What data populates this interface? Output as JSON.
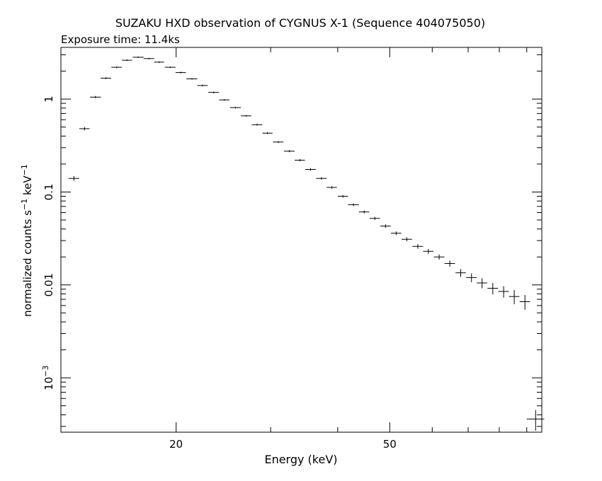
{
  "chart_data": {
    "type": "scatter",
    "title": "SUZAKU HXD observation of CYGNUS X-1 (Sequence 404075050)",
    "subtitle": "Exposure time: 11.4ks",
    "xlabel": "Energy (keV)",
    "ylabel": {
      "base": "normalized counts s",
      "sup1": "−1",
      "mid": " keV",
      "sup2": "−1"
    },
    "xscale": "log",
    "yscale": "log",
    "xlim": [
      12.2,
      96
    ],
    "ylim": [
      0.00026,
      3.6
    ],
    "grid": false,
    "legend": "none",
    "x_ticks": [
      {
        "value": 20,
        "label": "20"
      },
      {
        "value": 50,
        "label": "50"
      }
    ],
    "y_ticks": [
      {
        "value": 0.001,
        "base": "10",
        "sup": "−3"
      },
      {
        "value": 0.01,
        "base": "0.01",
        "sup": ""
      },
      {
        "value": 0.1,
        "base": "0.1",
        "sup": ""
      },
      {
        "value": 1,
        "base": "1",
        "sup": ""
      }
    ],
    "series": [
      {
        "x": [
          12.9,
          13.5,
          14.15,
          14.8,
          15.5,
          16.2,
          17.0,
          17.8,
          18.6,
          19.5,
          20.4,
          21.4,
          22.4,
          23.5,
          24.6,
          25.8,
          27.0,
          28.3,
          29.6,
          31.0,
          32.5,
          34.0,
          35.6,
          37.3,
          39.0,
          40.9,
          42.8,
          44.8,
          46.9,
          49.1,
          51.4,
          53.8,
          56.4,
          59.0,
          61.8,
          64.7,
          67.8,
          71.0,
          74.3,
          77.8,
          81.5,
          85.3,
          89.3
        ],
        "y": [
          0.14,
          0.48,
          1.05,
          1.68,
          2.2,
          2.62,
          2.82,
          2.73,
          2.5,
          2.2,
          1.93,
          1.65,
          1.4,
          1.18,
          0.98,
          0.81,
          0.66,
          0.53,
          0.43,
          0.345,
          0.275,
          0.22,
          0.175,
          0.14,
          0.112,
          0.09,
          0.073,
          0.061,
          0.052,
          0.043,
          0.036,
          0.031,
          0.026,
          0.023,
          0.02,
          0.017,
          0.0135,
          0.012,
          0.0105,
          0.0092,
          0.0085,
          0.0075,
          0.0066
        ],
        "xerr": [
          0.3,
          0.3,
          0.33,
          0.33,
          0.35,
          0.35,
          0.4,
          0.4,
          0.4,
          0.45,
          0.45,
          0.5,
          0.5,
          0.55,
          0.55,
          0.6,
          0.6,
          0.65,
          0.65,
          0.7,
          0.75,
          0.75,
          0.8,
          0.85,
          0.85,
          0.9,
          1.0,
          1.0,
          1.05,
          1.1,
          1.15,
          1.2,
          1.3,
          1.3,
          1.4,
          1.45,
          1.5,
          1.6,
          1.65,
          1.75,
          1.85,
          1.9,
          2.0
        ],
        "yerr": [
          0.008,
          0.02,
          0.03,
          0.04,
          0.05,
          0.05,
          0.05,
          0.05,
          0.05,
          0.04,
          0.04,
          0.03,
          0.03,
          0.025,
          0.02,
          0.017,
          0.014,
          0.012,
          0.01,
          0.008,
          0.007,
          0.006,
          0.005,
          0.004,
          0.0035,
          0.003,
          0.0025,
          0.0022,
          0.002,
          0.0018,
          0.0016,
          0.0015,
          0.0015,
          0.0014,
          0.0013,
          0.0013,
          0.0013,
          0.0013,
          0.0013,
          0.0013,
          0.0012,
          0.0013,
          0.0012
        ]
      },
      {
        "x": [
          93.5
        ],
        "y": [
          0.00036
        ],
        "xerr": [
          3.5
        ],
        "yerr": [
          9e-05
        ]
      }
    ]
  }
}
